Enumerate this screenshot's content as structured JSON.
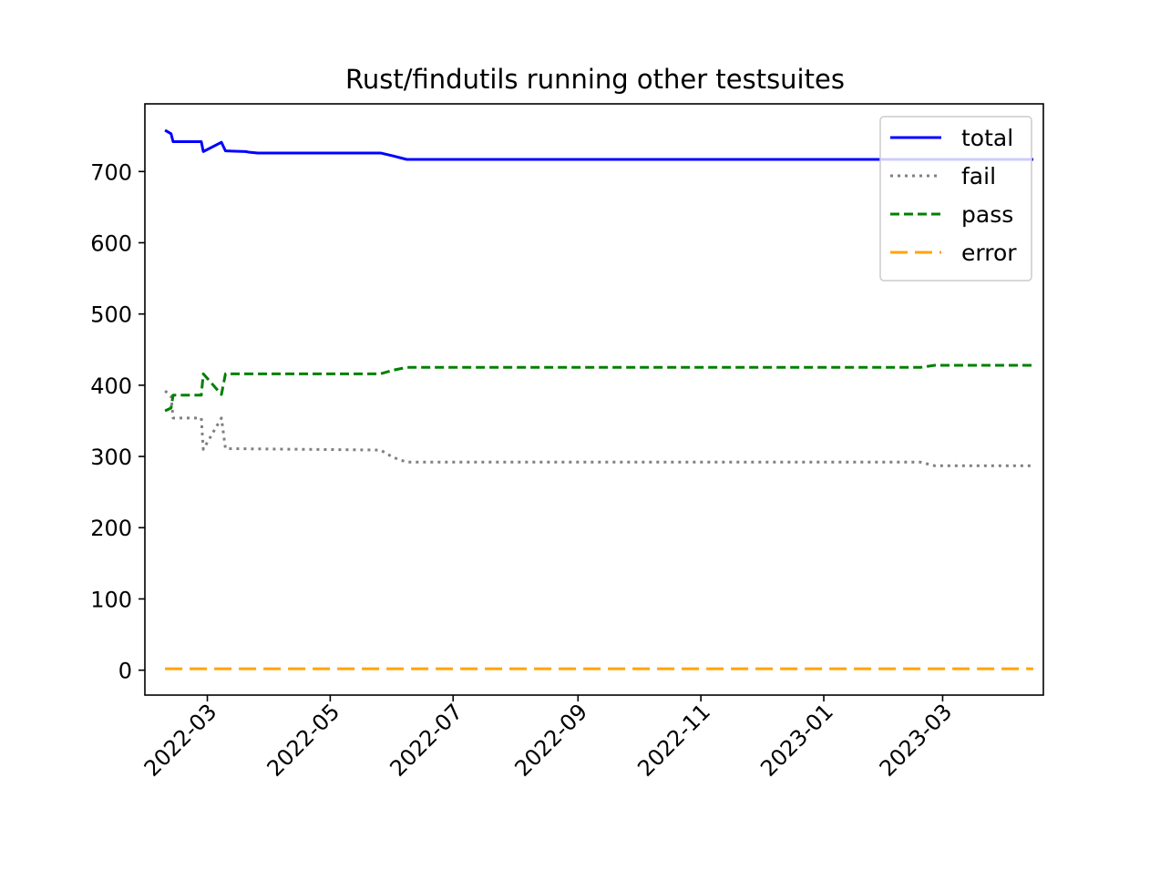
{
  "chart_data": {
    "type": "line",
    "title": "Rust/findutils running other testsuites",
    "xlabel": "",
    "ylabel": "",
    "x_range": [
      "2022-01-29",
      "2023-04-20"
    ],
    "ylim": [
      -35,
      795
    ],
    "y_ticks": [
      0,
      100,
      200,
      300,
      400,
      500,
      600,
      700
    ],
    "x_ticks": [
      "2022-03",
      "2022-05",
      "2022-07",
      "2022-09",
      "2022-11",
      "2023-01",
      "2023-03"
    ],
    "grid": false,
    "legend_position": "top-right",
    "series": [
      {
        "name": "total",
        "color": "#0000ff",
        "style": "solid",
        "points": [
          [
            "2022-02-08",
            758
          ],
          [
            "2022-02-11",
            753
          ],
          [
            "2022-02-12",
            742
          ],
          [
            "2022-02-26",
            742
          ],
          [
            "2022-02-27",
            728
          ],
          [
            "2022-03-08",
            741
          ],
          [
            "2022-03-10",
            729
          ],
          [
            "2022-03-20",
            728
          ],
          [
            "2022-03-22",
            727
          ],
          [
            "2022-03-26",
            726
          ],
          [
            "2022-05-26",
            726
          ],
          [
            "2022-06-01",
            722
          ],
          [
            "2022-06-08",
            717
          ],
          [
            "2023-04-15",
            717
          ]
        ]
      },
      {
        "name": "fail",
        "color": "#808080",
        "style": "dotted",
        "points": [
          [
            "2022-02-08",
            392
          ],
          [
            "2022-02-11",
            385
          ],
          [
            "2022-02-12",
            354
          ],
          [
            "2022-02-26",
            354
          ],
          [
            "2022-02-27",
            310
          ],
          [
            "2022-03-08",
            354
          ],
          [
            "2022-03-10",
            311
          ],
          [
            "2022-05-26",
            309
          ],
          [
            "2022-06-01",
            299
          ],
          [
            "2022-06-08",
            292
          ],
          [
            "2023-02-18",
            292
          ],
          [
            "2023-02-25",
            287
          ],
          [
            "2023-04-15",
            287
          ]
        ]
      },
      {
        "name": "pass",
        "color": "#008000",
        "style": "dashed",
        "points": [
          [
            "2022-02-08",
            364
          ],
          [
            "2022-02-11",
            368
          ],
          [
            "2022-02-12",
            386
          ],
          [
            "2022-02-26",
            386
          ],
          [
            "2022-02-27",
            416
          ],
          [
            "2022-03-08",
            387
          ],
          [
            "2022-03-10",
            416
          ],
          [
            "2022-05-26",
            416
          ],
          [
            "2022-06-01",
            421
          ],
          [
            "2022-06-08",
            425
          ],
          [
            "2023-02-18",
            425
          ],
          [
            "2023-02-25",
            428
          ],
          [
            "2023-04-15",
            428
          ]
        ]
      },
      {
        "name": "error",
        "color": "#ffa500",
        "style": "long-dashed",
        "points": [
          [
            "2022-02-08",
            2
          ],
          [
            "2023-04-15",
            2
          ]
        ]
      }
    ]
  }
}
